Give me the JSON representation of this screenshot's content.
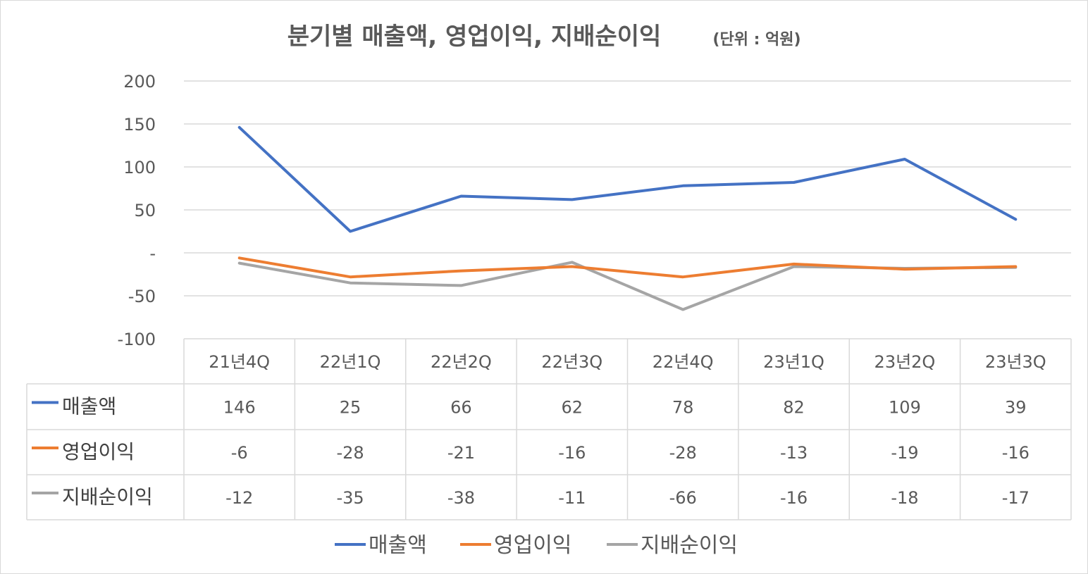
{
  "chart_data": {
    "type": "line",
    "title": "분기별 매출액, 영업이익, 지배순이익",
    "unit_note": "(단위 : 억원)",
    "categories": [
      "21년4Q",
      "22년1Q",
      "22년2Q",
      "22년3Q",
      "22년4Q",
      "23년1Q",
      "23년2Q",
      "23년3Q"
    ],
    "series": [
      {
        "name": "매출액",
        "color": "#4472C4",
        "values": [
          146,
          25,
          66,
          62,
          78,
          82,
          109,
          39
        ]
      },
      {
        "name": "영업이익",
        "color": "#ED7D31",
        "values": [
          -6,
          -28,
          -21,
          -16,
          -28,
          -13,
          -19,
          -16
        ]
      },
      {
        "name": "지배순이익",
        "color": "#A5A5A5",
        "values": [
          -12,
          -35,
          -38,
          -11,
          -66,
          -16,
          -18,
          -17
        ]
      }
    ],
    "yticks": [
      "200",
      "150",
      "100",
      "50",
      "-",
      "-50",
      "-100"
    ],
    "ytick_values": [
      200,
      150,
      100,
      50,
      0,
      -50,
      -100
    ],
    "ylim": [
      -100,
      200
    ],
    "grid": true,
    "data_table": true,
    "legend_position": "bottom"
  }
}
